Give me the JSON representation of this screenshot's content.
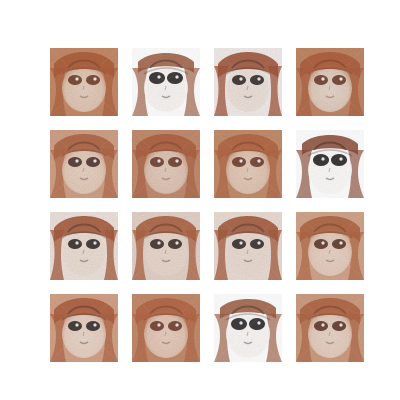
{
  "grid": {
    "rows": 4,
    "cols": 4,
    "tiles": [
      {
        "style": "warm",
        "face_tone": "#e9d4c4",
        "hair": "#b0623d",
        "hair_dark": "#6e3a27",
        "bg": "#c98d6b"
      },
      {
        "style": "bw",
        "face_tone": "#f7f3f0",
        "hair": "#9c5a3f",
        "hair_dark": "#1f1b1c",
        "bg": "#ffffff"
      },
      {
        "style": "mixed",
        "face_tone": "#f0e4dc",
        "hair": "#a45a3e",
        "hair_dark": "#2b2424",
        "bg": "#f6f0ee"
      },
      {
        "style": "warm",
        "face_tone": "#eadbd0",
        "hair": "#b26242",
        "hair_dark": "#6b3828",
        "bg": "#c48a69"
      },
      {
        "style": "warm",
        "face_tone": "#ecd6c6",
        "hair": "#b36a48",
        "hair_dark": "#4a2f2a",
        "bg": "#d4a48a"
      },
      {
        "style": "warm",
        "face_tone": "#e7d1c3",
        "hair": "#b16645",
        "hair_dark": "#6c3a2a",
        "bg": "#c68f72"
      },
      {
        "style": "warm",
        "face_tone": "#ead2c1",
        "hair": "#b76a47",
        "hair_dark": "#6b3a2b",
        "bg": "#c7906f"
      },
      {
        "style": "bw",
        "face_tone": "#fbf9f8",
        "hair": "#8a4a36",
        "hair_dark": "#1a1718",
        "bg": "#ffffff"
      },
      {
        "style": "mixed",
        "face_tone": "#efe1d6",
        "hair": "#a85e40",
        "hair_dark": "#2b2525",
        "bg": "#f2e6e0"
      },
      {
        "style": "mixed",
        "face_tone": "#eddcd0",
        "hair": "#b06646",
        "hair_dark": "#3a2a27",
        "bg": "#e8d6cc"
      },
      {
        "style": "mixed",
        "face_tone": "#eedfd5",
        "hair": "#a95f41",
        "hair_dark": "#2f2726",
        "bg": "#efe1d9"
      },
      {
        "style": "warm",
        "face_tone": "#edd8ca",
        "hair": "#b46947",
        "hair_dark": "#5a3328",
        "bg": "#d6a88e"
      },
      {
        "style": "warm",
        "face_tone": "#efdcd0",
        "hair": "#b26445",
        "hair_dark": "#2f2726",
        "bg": "#d7a58a"
      },
      {
        "style": "warm",
        "face_tone": "#ecd3c4",
        "hair": "#b86a49",
        "hair_dark": "#6b392b",
        "bg": "#c78e6f"
      },
      {
        "style": "bw",
        "face_tone": "#f8f5f3",
        "hair": "#9c5a40",
        "hair_dark": "#1f1c1d",
        "bg": "#ffffff"
      },
      {
        "style": "warm",
        "face_tone": "#eddacd",
        "hair": "#b46948",
        "hair_dark": "#5a3328",
        "bg": "#d1a085"
      }
    ]
  }
}
